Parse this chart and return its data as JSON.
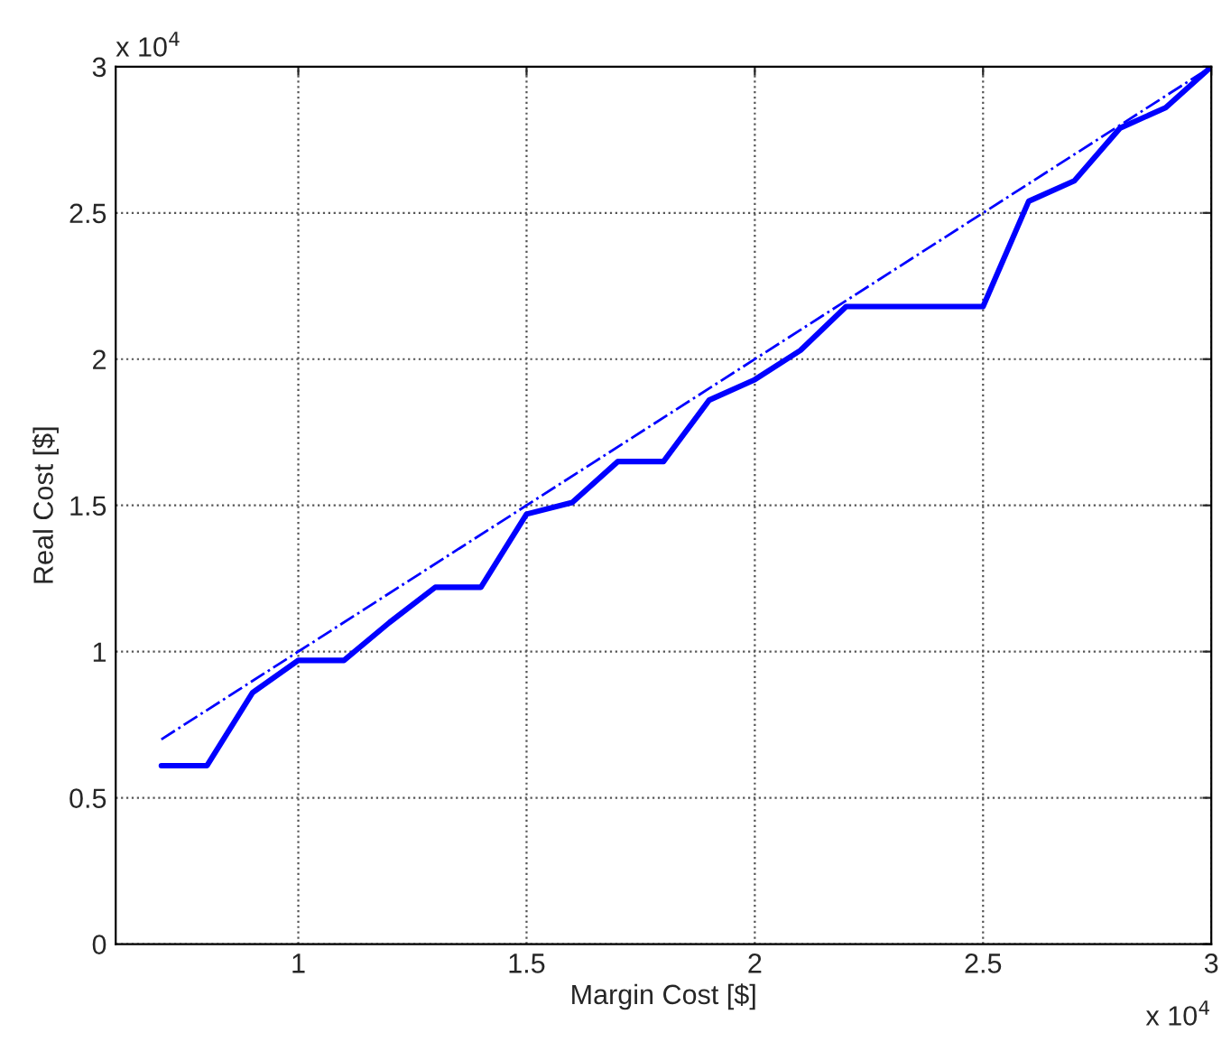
{
  "chart_data": {
    "type": "line",
    "xlabel": "Margin Cost [$]",
    "ylabel": "Real Cost [$]",
    "annotations": [
      "x 10$^{4}$",
      "x 10$^{4}$"
    ],
    "series": [
      {
        "color": "#0000ff",
        "line_style": "solid",
        "x": [
          0.7,
          0.8,
          0.9,
          1.0,
          1.1,
          1.2,
          1.3,
          1.4,
          1.5,
          1.6,
          1.7,
          1.8,
          1.9,
          2.0,
          2.1,
          2.2,
          2.3,
          2.4,
          2.5,
          2.6,
          2.7,
          2.8,
          2.9,
          3.0
        ],
        "values": [
          0.61,
          0.61,
          0.86,
          0.97,
          0.97,
          1.1,
          1.22,
          1.22,
          1.47,
          1.51,
          1.65,
          1.65,
          1.86,
          1.93,
          2.03,
          2.18,
          2.18,
          2.18,
          2.18,
          2.54,
          2.61,
          2.79,
          2.86,
          3.0
        ]
      },
      {
        "color": "#0000ff",
        "line_style": "dashdot",
        "x": [
          0.7,
          3.0
        ],
        "values": [
          0.7,
          3.0
        ]
      }
    ],
    "xlim": [
      0.6,
      3
    ],
    "xticks": [
      1,
      1.5,
      2,
      2.5,
      3
    ],
    "ylim": [
      0,
      3
    ],
    "yticks": [
      0,
      0.5,
      1,
      1.5,
      2,
      2.5,
      3
    ],
    "grid": true,
    "marker": "none"
  }
}
